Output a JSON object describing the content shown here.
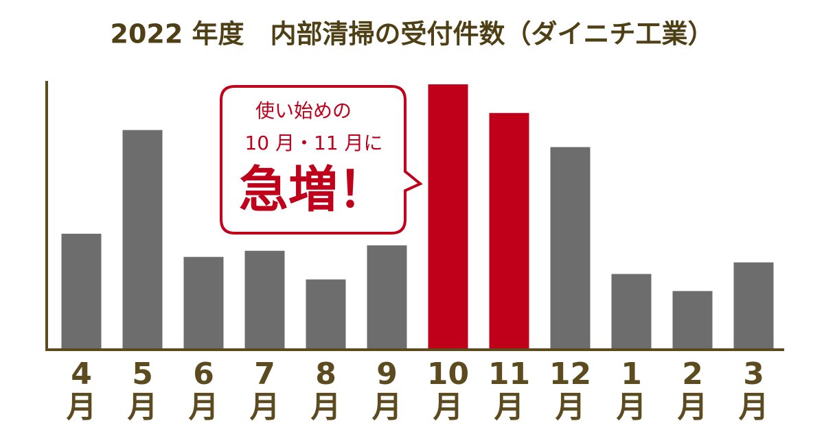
{
  "chart_data": {
    "type": "bar",
    "title": "2022 年度　内部清掃の受付件数（ダイニチ工業）",
    "categories": [
      "4月",
      "5月",
      "6月",
      "7月",
      "8月",
      "9月",
      "10月",
      "11月",
      "12月",
      "1月",
      "2月",
      "3月"
    ],
    "values": [
      168,
      320,
      134,
      143,
      101,
      151,
      387,
      345,
      295,
      109,
      84,
      126
    ],
    "colors": [
      "#6d6d6d",
      "#6d6d6d",
      "#6d6d6d",
      "#6d6d6d",
      "#6d6d6d",
      "#6d6d6d",
      "#c0001a",
      "#c0001a",
      "#6d6d6d",
      "#6d6d6d",
      "#6d6d6d",
      "#6d6d6d"
    ],
    "ylim": [
      0,
      390
    ],
    "annotation": {
      "lines": [
        "使い始めの",
        "10 月・11 月に"
      ],
      "emphasis": "急増！"
    }
  }
}
